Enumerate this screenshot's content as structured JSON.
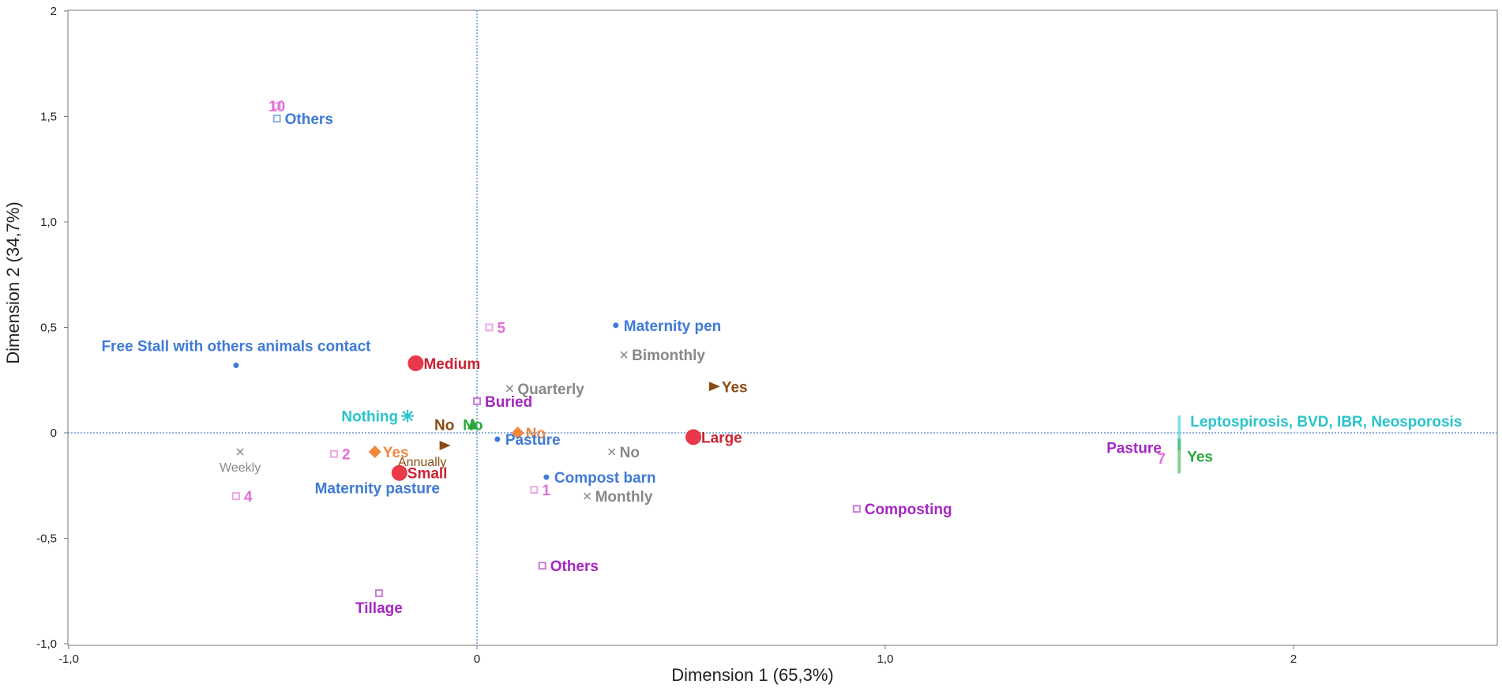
{
  "chart_data": {
    "type": "scatter",
    "title": "",
    "xlabel": "Dimension 1 (65,3%)",
    "ylabel": "Dimension 2 (34,7%)",
    "xlim": [
      -1.0,
      2.5
    ],
    "ylim": [
      -1.0,
      2.0
    ],
    "xticks": [
      {
        "v": -1.0,
        "label": "-1,0"
      },
      {
        "v": 0,
        "label": "0"
      },
      {
        "v": 1.0,
        "label": "1,0"
      },
      {
        "v": 2,
        "label": "2"
      }
    ],
    "yticks": [
      {
        "v": 2,
        "label": "2"
      },
      {
        "v": 1.5,
        "label": "1,5"
      },
      {
        "v": 1.0,
        "label": "1,0"
      },
      {
        "v": 0.5,
        "label": "0,5"
      },
      {
        "v": 0,
        "label": "0"
      },
      {
        "v": -0.5,
        "label": "-0,5"
      },
      {
        "v": -1.0,
        "label": "-1,0"
      }
    ],
    "grid": false,
    "points": [
      {
        "label": "10",
        "x": -0.49,
        "y": 1.55,
        "color": "#e06fd6",
        "marker": "square",
        "pos": "center"
      },
      {
        "label": "Others",
        "x": -0.49,
        "y": 1.49,
        "color": "#3f7ad6",
        "marker": "square",
        "pos": "right"
      },
      {
        "label": "Free Stall with others animals contact",
        "x": -0.59,
        "y": 0.32,
        "color": "#3f7ad6",
        "marker": "dot",
        "pos": "above"
      },
      {
        "label": "5",
        "x": 0.03,
        "y": 0.5,
        "color": "#e06fd6",
        "marker": "square",
        "pos": "right"
      },
      {
        "label": "Maternity pen",
        "x": 0.34,
        "y": 0.51,
        "color": "#3f7ad6",
        "marker": "dot",
        "pos": "right"
      },
      {
        "label": "Bimonthly",
        "x": 0.36,
        "y": 0.37,
        "color": "#888888",
        "marker": "x",
        "pos": "right"
      },
      {
        "label": "Medium",
        "x": -0.15,
        "y": 0.33,
        "color": "#cc2233",
        "marker": "circle",
        "pos": "right"
      },
      {
        "label": "Quarterly",
        "x": 0.08,
        "y": 0.21,
        "color": "#888888",
        "marker": "x",
        "pos": "right"
      },
      {
        "label": "Yes",
        "x": 0.58,
        "y": 0.22,
        "color": "#8b4a12",
        "marker": "triangle-right",
        "pos": "right"
      },
      {
        "label": "Buried",
        "x": 0.0,
        "y": 0.15,
        "color": "#a527c2",
        "marker": "square",
        "pos": "right"
      },
      {
        "label": "Nothing",
        "x": -0.17,
        "y": 0.08,
        "color": "#29c4cc",
        "marker": "star",
        "pos": "left"
      },
      {
        "label": "No",
        "x": -0.08,
        "y": 0.04,
        "color": "#8b4a12",
        "marker": "none",
        "pos": "center"
      },
      {
        "label": "No",
        "x": -0.01,
        "y": 0.04,
        "color": "#2aa83a",
        "marker": "triangle-up",
        "pos": "center"
      },
      {
        "label": "No",
        "x": 0.1,
        "y": 0.0,
        "color": "#f0883e",
        "marker": "diamond",
        "pos": "right"
      },
      {
        "label": "Pasture",
        "x": 0.05,
        "y": -0.03,
        "color": "#3f7ad6",
        "marker": "dot",
        "pos": "right"
      },
      {
        "label": "Large",
        "x": 0.53,
        "y": -0.02,
        "color": "#cc2233",
        "marker": "circle",
        "pos": "right"
      },
      {
        "label": "No",
        "x": 0.33,
        "y": -0.09,
        "color": "#888888",
        "marker": "x",
        "pos": "right"
      },
      {
        "label": "2",
        "x": -0.35,
        "y": -0.1,
        "color": "#e06fd6",
        "marker": "square",
        "pos": "right"
      },
      {
        "label": "Yes",
        "x": -0.25,
        "y": -0.09,
        "color": "#f0883e",
        "marker": "diamond",
        "pos": "right"
      },
      {
        "label": "Annually",
        "x": -0.08,
        "y": -0.06,
        "color": "#8b4a12",
        "marker": "triangle-right",
        "pos": "below-left"
      },
      {
        "label": "Weekly",
        "x": -0.58,
        "y": -0.09,
        "color": "#888888",
        "marker": "x",
        "pos": "below"
      },
      {
        "label": "Small",
        "x": -0.19,
        "y": -0.19,
        "color": "#cc2233",
        "marker": "circle",
        "pos": "right"
      },
      {
        "label": "Compost barn",
        "x": 0.17,
        "y": -0.21,
        "color": "#3f7ad6",
        "marker": "dot",
        "pos": "right"
      },
      {
        "label": "1",
        "x": 0.14,
        "y": -0.27,
        "color": "#e06fd6",
        "marker": "square",
        "pos": "right"
      },
      {
        "label": "Monthly",
        "x": 0.27,
        "y": -0.3,
        "color": "#888888",
        "marker": "x",
        "pos": "right"
      },
      {
        "label": "4",
        "x": -0.59,
        "y": -0.3,
        "color": "#e06fd6",
        "marker": "square",
        "pos": "right"
      },
      {
        "label": "Maternity pasture",
        "x": -0.19,
        "y": -0.19,
        "color": "#3f7ad6",
        "marker": "none",
        "pos": "below-left"
      },
      {
        "label": "Composting",
        "x": 0.93,
        "y": -0.36,
        "color": "#a527c2",
        "marker": "square",
        "pos": "right"
      },
      {
        "label": "Others",
        "x": 0.16,
        "y": -0.63,
        "color": "#a527c2",
        "marker": "square",
        "pos": "right"
      },
      {
        "label": "Tillage",
        "x": -0.24,
        "y": -0.76,
        "color": "#a527c2",
        "marker": "square",
        "pos": "below"
      },
      {
        "label": "Leptospirosis, BVD, IBR, Neosporosis",
        "x": 1.72,
        "y": 0.0,
        "color": "#29c4cc",
        "marker": "vbar",
        "pos": "above-right"
      },
      {
        "label": "Pasture",
        "x": 1.7,
        "y": -0.07,
        "color": "#a527c2",
        "marker": "none",
        "pos": "left"
      },
      {
        "label": "7",
        "x": 1.71,
        "y": -0.12,
        "color": "#e06fd6",
        "marker": "none",
        "pos": "left"
      },
      {
        "label": "Yes",
        "x": 1.72,
        "y": -0.11,
        "color": "#2aa83a",
        "marker": "vbar",
        "pos": "right"
      }
    ]
  }
}
